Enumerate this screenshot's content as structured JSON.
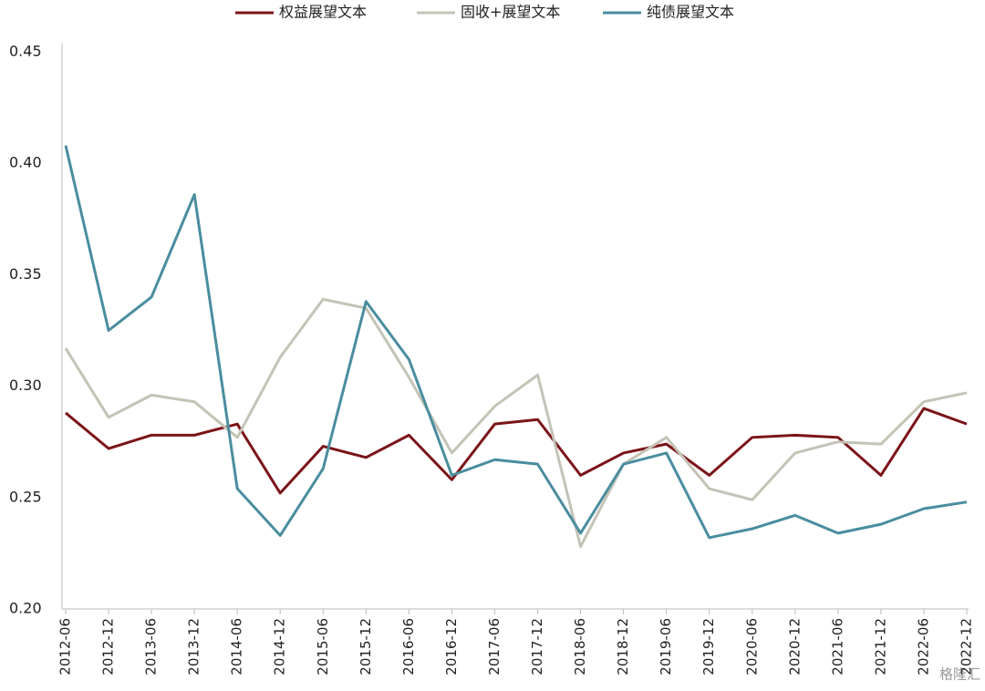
{
  "chart_data": {
    "type": "line",
    "categories": [
      "2012-06",
      "2012-12",
      "2013-06",
      "2013-12",
      "2014-06",
      "2014-12",
      "2015-06",
      "2015-12",
      "2016-06",
      "2016-12",
      "2017-06",
      "2017-12",
      "2018-06",
      "2018-12",
      "2019-06",
      "2019-12",
      "2020-06",
      "2020-12",
      "2021-06",
      "2021-12",
      "2022-06",
      "2022-12"
    ],
    "series": [
      {
        "name": "权益展望文本",
        "color": "#7b1418",
        "values": [
          0.288,
          0.272,
          0.278,
          0.278,
          0.283,
          0.252,
          0.273,
          0.268,
          0.278,
          0.258,
          0.283,
          0.285,
          0.26,
          0.27,
          0.274,
          0.26,
          0.277,
          0.278,
          0.277,
          0.26,
          0.29,
          0.283
        ]
      },
      {
        "name": "固收+展望文本",
        "color": "#c4c3b6",
        "values": [
          0.317,
          0.286,
          0.296,
          0.293,
          0.277,
          0.313,
          0.339,
          0.335,
          0.304,
          0.27,
          0.291,
          0.305,
          0.228,
          0.265,
          0.277,
          0.254,
          0.249,
          0.27,
          0.275,
          0.274,
          0.293,
          0.297
        ]
      },
      {
        "name": "纯债展望文本",
        "color": "#4a8d9f",
        "values": [
          0.408,
          0.325,
          0.34,
          0.386,
          0.254,
          0.233,
          0.263,
          0.338,
          0.312,
          0.26,
          0.267,
          0.265,
          0.234,
          0.265,
          0.27,
          0.232,
          0.236,
          0.242,
          0.234,
          0.238,
          0.245,
          0.248
        ]
      }
    ],
    "ylim": [
      0.2,
      0.45
    ],
    "yticks": [
      {
        "value": 0.2,
        "label": "0.20"
      },
      0.25,
      {
        "value": 0.3,
        "label": "0.30"
      },
      0.35,
      {
        "value": 0.4,
        "label": "0.40"
      },
      0.45
    ],
    "grid": false,
    "legend": "top",
    "watermark": "格隆汇"
  }
}
